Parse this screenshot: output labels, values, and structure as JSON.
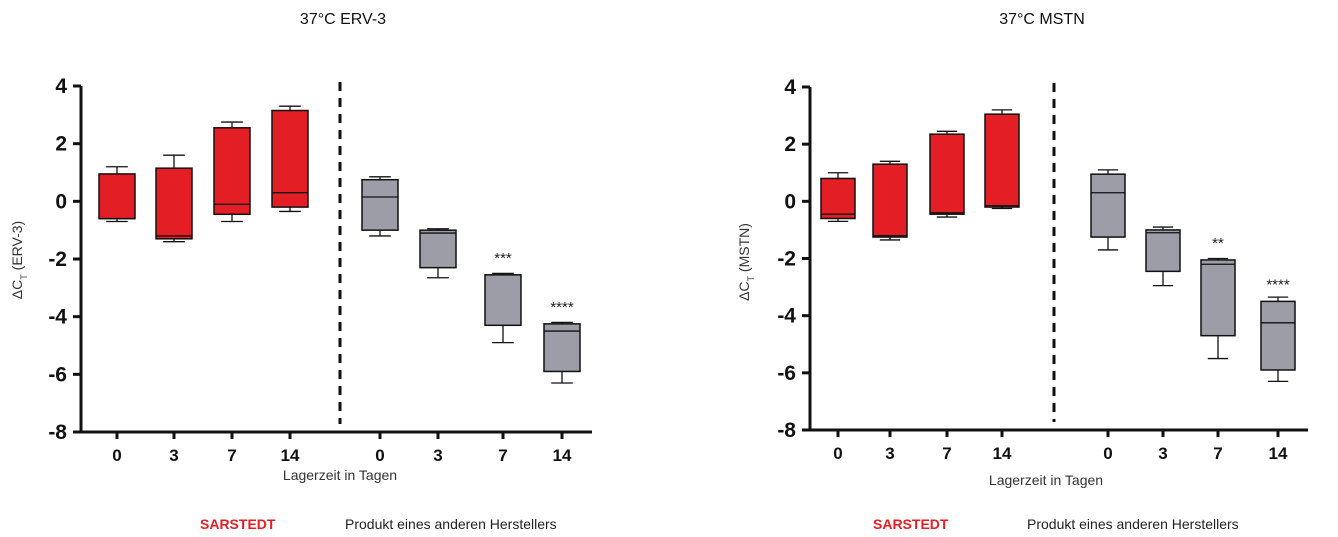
{
  "chart_data": [
    {
      "type": "box",
      "title": "37°C ERV-3",
      "ylabel_main": "ΔC",
      "ylabel_sub": "T",
      "ylabel_suffix": " (ERV-3)",
      "xlabel": "Lagerzeit in Tagen",
      "ylim": [
        -8,
        4
      ],
      "yticks": [
        "4",
        "2",
        "0",
        "-2",
        "-4",
        "-6",
        "-8"
      ],
      "groups": [
        {
          "legend": "SARSTEDT",
          "color": "#e31e24",
          "boxes": [
            {
              "x": "0",
              "min": -0.7,
              "q1": -0.6,
              "median": -0.6,
              "q3": 0.95,
              "max": 1.2
            },
            {
              "x": "3",
              "min": -1.4,
              "q1": -1.3,
              "median": -1.2,
              "q3": 1.15,
              "max": 1.6
            },
            {
              "x": "7",
              "min": -0.7,
              "q1": -0.45,
              "median": -0.1,
              "q3": 2.55,
              "max": 2.75
            },
            {
              "x": "14",
              "min": -0.35,
              "q1": -0.2,
              "median": 0.3,
              "q3": 3.15,
              "max": 3.3
            }
          ]
        },
        {
          "legend": "Produkt eines anderen Herstellers",
          "color": "#9d9da8",
          "boxes": [
            {
              "x": "0",
              "min": -1.2,
              "q1": -1.0,
              "median": 0.15,
              "q3": 0.75,
              "max": 0.85,
              "sig": ""
            },
            {
              "x": "3",
              "min": -2.65,
              "q1": -2.3,
              "median": -1.1,
              "q3": -1.0,
              "max": -0.95,
              "sig": ""
            },
            {
              "x": "7",
              "min": -4.9,
              "q1": -4.3,
              "median": -2.55,
              "q3": -2.55,
              "max": -2.5,
              "sig": "***"
            },
            {
              "x": "14",
              "min": -6.3,
              "q1": -5.9,
              "median": -4.5,
              "q3": -4.25,
              "max": -4.2,
              "sig": "****"
            }
          ]
        }
      ]
    },
    {
      "type": "box",
      "title": "37°C MSTN",
      "ylabel_main": "ΔC",
      "ylabel_sub": "T",
      "ylabel_suffix": " (MSTN)",
      "xlabel": "Lagerzeit in Tagen",
      "ylim": [
        -8,
        4
      ],
      "yticks": [
        "4",
        "2",
        "0",
        "-2",
        "-4",
        "-6",
        "-8"
      ],
      "groups": [
        {
          "legend": "SARSTEDT",
          "color": "#e31e24",
          "boxes": [
            {
              "x": "0",
              "min": -0.7,
              "q1": -0.6,
              "median": -0.45,
              "q3": 0.8,
              "max": 1.0
            },
            {
              "x": "3",
              "min": -1.35,
              "q1": -1.25,
              "median": -1.2,
              "q3": 1.3,
              "max": 1.4
            },
            {
              "x": "7",
              "min": -0.55,
              "q1": -0.45,
              "median": -0.4,
              "q3": 2.35,
              "max": 2.45
            },
            {
              "x": "14",
              "min": -0.25,
              "q1": -0.2,
              "median": -0.15,
              "q3": 3.05,
              "max": 3.2
            }
          ]
        },
        {
          "legend": "Produkt eines anderen Herstellers",
          "color": "#9d9da8",
          "boxes": [
            {
              "x": "0",
              "min": -1.7,
              "q1": -1.25,
              "median": 0.3,
              "q3": 0.95,
              "max": 1.1,
              "sig": ""
            },
            {
              "x": "3",
              "min": -2.95,
              "q1": -2.45,
              "median": -1.1,
              "q3": -1.0,
              "max": -0.9,
              "sig": ""
            },
            {
              "x": "7",
              "min": -5.5,
              "q1": -4.7,
              "median": -2.2,
              "q3": -2.05,
              "max": -2.0,
              "sig": "**"
            },
            {
              "x": "14",
              "min": -6.3,
              "q1": -5.9,
              "median": -4.25,
              "q3": -3.5,
              "max": -3.35,
              "sig": "****"
            }
          ]
        }
      ]
    }
  ]
}
